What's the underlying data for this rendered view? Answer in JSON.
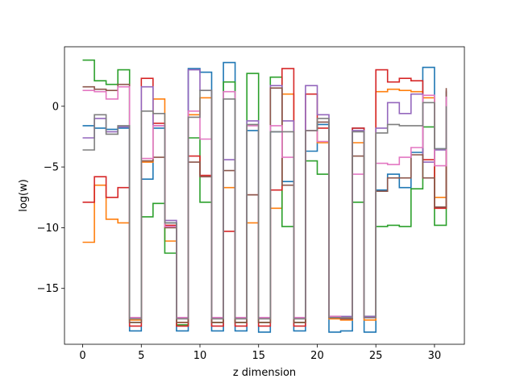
{
  "chart_data": {
    "type": "line",
    "step": "post",
    "xlabel": "z dimension",
    "ylabel": "log(w)",
    "xlim": [
      -1.55,
      32.55
    ],
    "ylim": [
      -19.6,
      4.9
    ],
    "xticks": [
      0,
      5,
      10,
      15,
      20,
      25,
      30
    ],
    "yticks": [
      0,
      -5,
      -10,
      -15
    ],
    "x": [
      0,
      1,
      2,
      3,
      4,
      5,
      6,
      7,
      8,
      9,
      10,
      11,
      12,
      13,
      14,
      15,
      16,
      17,
      18,
      19,
      20,
      21,
      22,
      23,
      24,
      25,
      26,
      27,
      28,
      29,
      30,
      31
    ],
    "series": [
      {
        "color": "#1f77b4",
        "values": [
          -1.6,
          -1.8,
          -1.9,
          -1.8,
          -18.5,
          -6.0,
          -1.8,
          -9.6,
          -18.5,
          3.1,
          2.8,
          -18.5,
          3.6,
          -18.5,
          -2.0,
          -18.6,
          -2.1,
          -6.2,
          -18.5,
          -3.7,
          -1.5,
          -18.6,
          -18.5,
          -1.8,
          -18.6,
          -6.9,
          -5.6,
          -6.7,
          -3.8,
          3.2,
          -3.5,
          -3.0
        ]
      },
      {
        "color": "#ff7f0e",
        "values": [
          -11.2,
          -6.5,
          -9.3,
          -9.6,
          -17.6,
          -4.6,
          0.6,
          -11.1,
          -17.8,
          -0.7,
          0.7,
          -17.8,
          -6.7,
          -17.8,
          -9.6,
          -17.8,
          -8.4,
          1.0,
          -17.8,
          -2.0,
          -3.0,
          -17.5,
          -17.6,
          -3.0,
          -17.6,
          1.2,
          1.4,
          1.3,
          1.2,
          0.7,
          -7.5,
          -2.5
        ]
      },
      {
        "color": "#2ca02c",
        "values": [
          3.8,
          2.1,
          1.8,
          3.0,
          -17.8,
          -9.1,
          -8.0,
          -12.1,
          -18.0,
          -2.6,
          -7.9,
          -17.8,
          2.0,
          -17.8,
          2.7,
          -17.8,
          2.4,
          -9.9,
          -17.8,
          -4.5,
          -5.6,
          -17.3,
          -17.4,
          -7.9,
          -17.3,
          -9.9,
          -9.8,
          -9.9,
          -6.8,
          -1.7,
          -9.8,
          1.2
        ]
      },
      {
        "color": "#d62728",
        "values": [
          -7.9,
          -5.8,
          -7.5,
          -6.7,
          -18.1,
          2.3,
          -1.4,
          -9.8,
          -18.1,
          -4.1,
          -5.7,
          -18.1,
          -10.3,
          -18.1,
          -7.3,
          -18.1,
          -6.9,
          3.1,
          -18.1,
          1.0,
          -1.8,
          -17.4,
          -17.5,
          -1.8,
          -17.4,
          3.0,
          2.0,
          2.3,
          2.1,
          -4.4,
          -8.4,
          -1.6
        ]
      },
      {
        "color": "#9467bd",
        "values": [
          -2.6,
          -1.0,
          -2.1,
          -1.7,
          -17.4,
          1.6,
          -1.6,
          -9.4,
          -17.4,
          3.0,
          1.3,
          -17.4,
          -4.4,
          -17.4,
          -1.2,
          -17.4,
          1.7,
          -1.2,
          -17.4,
          1.7,
          -0.7,
          -17.3,
          -17.3,
          -2.0,
          -17.3,
          -1.8,
          0.3,
          -0.6,
          1.0,
          -4.6,
          -3.6,
          1.3
        ]
      },
      {
        "color": "#8c564b",
        "values": [
          1.6,
          1.4,
          1.3,
          1.8,
          -17.8,
          -4.5,
          -4.2,
          -10.0,
          -17.8,
          -4.6,
          -5.8,
          -17.8,
          -5.3,
          -17.8,
          -7.3,
          -17.8,
          1.5,
          -6.5,
          -17.8,
          -2.0,
          -1.3,
          -17.4,
          -17.5,
          -4.1,
          -17.4,
          -7.0,
          -5.9,
          -5.9,
          -4.0,
          -5.9,
          -8.3,
          1.5
        ]
      },
      {
        "color": "#e377c2",
        "values": [
          1.3,
          1.2,
          0.6,
          1.6,
          -17.4,
          -4.3,
          -1.6,
          -9.9,
          -17.4,
          -0.4,
          -2.7,
          -17.4,
          1.2,
          -17.4,
          -1.6,
          -17.4,
          -1.6,
          -4.2,
          -17.4,
          -2.0,
          -2.9,
          -17.3,
          -17.4,
          -5.6,
          -17.4,
          -4.7,
          -4.8,
          -4.2,
          -3.4,
          0.9,
          -4.9,
          0.8
        ]
      },
      {
        "color": "#7f7f7f",
        "values": [
          -3.6,
          -0.7,
          -2.3,
          -1.6,
          -17.5,
          -0.4,
          -0.6,
          -9.6,
          -17.5,
          -0.9,
          1.3,
          -17.5,
          0.6,
          -17.5,
          -1.5,
          -17.5,
          -2.1,
          -2.1,
          -17.5,
          -2.0,
          -1.0,
          -17.4,
          -17.4,
          -2.1,
          -17.4,
          -2.2,
          -1.5,
          -1.6,
          -1.6,
          0.3,
          -3.5,
          0.0
        ]
      }
    ]
  }
}
